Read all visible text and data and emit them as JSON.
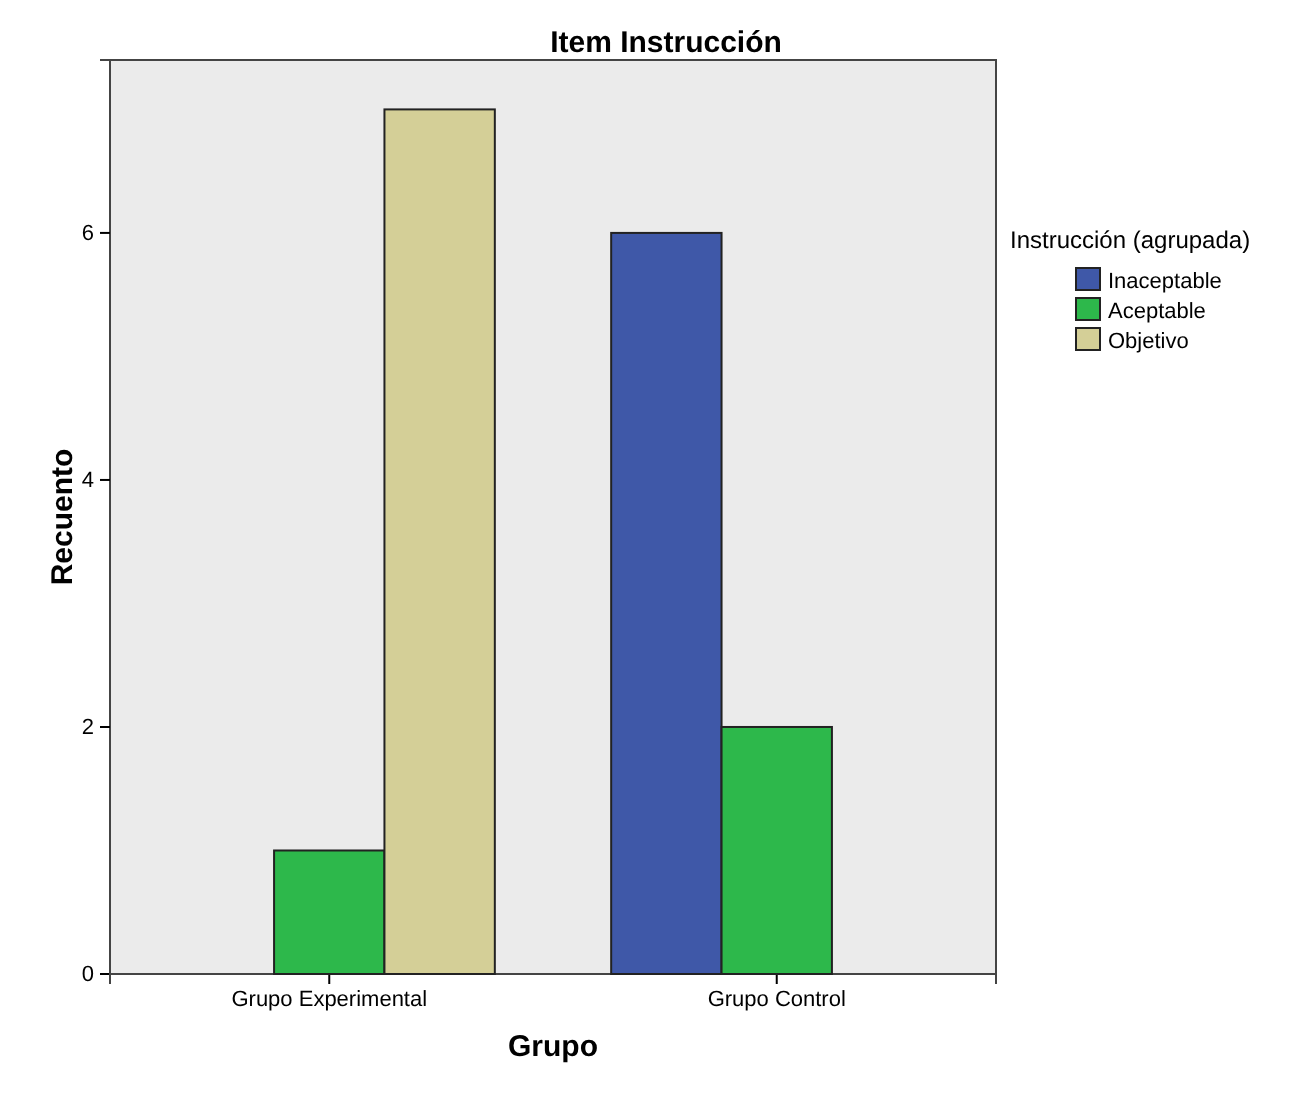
{
  "chart_data": {
    "type": "bar",
    "title": "Item Instrucción",
    "xlabel": "Grupo",
    "ylabel": "Recuento",
    "legend_title": "Instrucción (agrupada)",
    "categories": [
      "Grupo Experimental",
      "Grupo Control"
    ],
    "series": [
      {
        "name": "Inaceptable",
        "color": "#3f58a8",
        "values": [
          0,
          6
        ]
      },
      {
        "name": "Aceptable",
        "color": "#2db84b",
        "values": [
          1,
          2
        ]
      },
      {
        "name": "Objetivo",
        "color": "#d4cf97",
        "values": [
          7,
          0
        ]
      }
    ],
    "ylim": [
      0,
      7.4
    ],
    "yticks": [
      0,
      2,
      4,
      6
    ],
    "grid": false,
    "legend": "right"
  }
}
